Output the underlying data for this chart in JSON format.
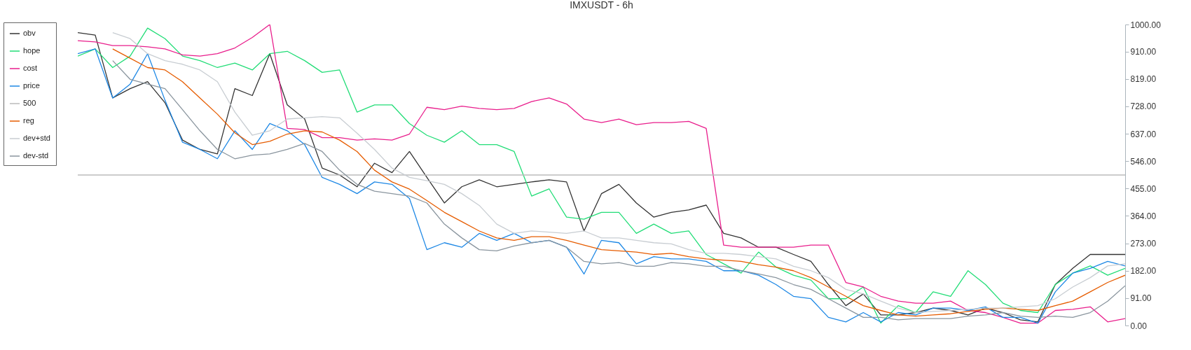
{
  "chart_data": {
    "type": "line",
    "title": "IMXUSDT - 6h",
    "categories": [
      null,
      null,
      null,
      null,
      null,
      null,
      null,
      null,
      null,
      null,
      null,
      null,
      null,
      null,
      null,
      null,
      null,
      null,
      null,
      null,
      null,
      null,
      null,
      null,
      null,
      null,
      null,
      null,
      null,
      null,
      null,
      null,
      null,
      null,
      null,
      null,
      null,
      null,
      null,
      null,
      null,
      null,
      null,
      null,
      null,
      null,
      null,
      null,
      null,
      null,
      null,
      null,
      null,
      null,
      null,
      null,
      null,
      null,
      null,
      null,
      null
    ],
    "series": [
      {
        "name": "obv",
        "color": "#333333",
        "values": [
          973,
          965,
          756,
          787,
          810,
          740,
          616,
          585,
          570,
          787,
          764,
          903,
          733,
          686,
          523,
          500,
          461,
          539,
          508,
          578,
          492,
          407,
          461,
          484,
          461,
          469,
          477,
          484,
          477,
          314,
          438,
          469,
          407,
          360,
          376,
          384,
          400,
          306,
          291,
          260,
          260,
          236,
          213,
          136,
          66,
          105,
          35,
          35,
          43,
          58,
          50,
          35,
          58,
          43,
          19,
          12,
          136,
          190,
          236,
          236,
          236
        ]
      },
      {
        "name": "hope",
        "color": "#22dd77",
        "values": [
          895,
          919,
          857,
          895,
          988,
          953,
          895,
          880,
          857,
          872,
          849,
          903,
          911,
          880,
          841,
          849,
          709,
          733,
          733,
          671,
          632,
          609,
          647,
          601,
          601,
          578,
          430,
          454,
          360,
          353,
          376,
          376,
          306,
          337,
          306,
          314,
          236,
          205,
          174,
          244,
          194,
          167,
          151,
          89,
          89,
          128,
          8,
          66,
          43,
          112,
          97,
          182,
          136,
          74,
          50,
          43,
          136,
          174,
          198,
          167,
          190
        ]
      },
      {
        "name": "cost",
        "color": "#e91e8c",
        "values": [
          946,
          942,
          930,
          930,
          926,
          919,
          899,
          895,
          903,
          922,
          957,
          1000,
          655,
          651,
          624,
          624,
          616,
          620,
          616,
          636,
          725,
          717,
          729,
          721,
          717,
          721,
          744,
          756,
          736,
          686,
          674,
          686,
          667,
          674,
          674,
          678,
          655,
          267,
          260,
          260,
          260,
          260,
          267,
          267,
          143,
          128,
          97,
          81,
          74,
          74,
          81,
          50,
          43,
          27,
          8,
          8,
          50,
          54,
          62,
          12,
          23
        ]
      },
      {
        "name": "price",
        "color": "#1e88e5",
        "values": [
          903,
          919,
          756,
          802,
          903,
          748,
          609,
          585,
          554,
          647,
          585,
          671,
          647,
          601,
          492,
          469,
          438,
          477,
          469,
          422,
          252,
          275,
          260,
          306,
          283,
          306,
          275,
          283,
          260,
          171,
          283,
          275,
          205,
          229,
          221,
          221,
          213,
          182,
          182,
          167,
          136,
          97,
          89,
          27,
          12,
          43,
          12,
          43,
          35,
          58,
          58,
          50,
          62,
          27,
          27,
          8,
          112,
          174,
          190,
          213,
          198
        ]
      },
      {
        "name": "500",
        "color": "#bbbbbb",
        "values": [
          500,
          500,
          500,
          500,
          500,
          500,
          500,
          500,
          500,
          500,
          500,
          500,
          500,
          500,
          500,
          500,
          500,
          500,
          500,
          500,
          500,
          500,
          500,
          500,
          500,
          500,
          500,
          500,
          500,
          500,
          500,
          500,
          500,
          500,
          500,
          500,
          500,
          500,
          500,
          500,
          500,
          500,
          500,
          500,
          500,
          500,
          500,
          500,
          500,
          500,
          500,
          500,
          500,
          500,
          500,
          500,
          500,
          500,
          500,
          500,
          500
        ]
      },
      {
        "name": "reg",
        "color": "#e65c00",
        "values": [
          null,
          null,
          919,
          888,
          857,
          849,
          810,
          756,
          702,
          640,
          601,
          612,
          636,
          647,
          643,
          616,
          578,
          516,
          477,
          453,
          415,
          376,
          345,
          314,
          291,
          283,
          295,
          295,
          283,
          267,
          252,
          248,
          244,
          236,
          240,
          229,
          221,
          217,
          213,
          202,
          194,
          182,
          159,
          128,
          97,
          66,
          50,
          35,
          31,
          35,
          39,
          47,
          54,
          58,
          54,
          50,
          66,
          81,
          112,
          143,
          167
        ]
      },
      {
        "name": "dev+std",
        "color": "#c8cdd2",
        "values": [
          null,
          null,
          973,
          953,
          903,
          880,
          868,
          849,
          810,
          709,
          632,
          647,
          686,
          690,
          694,
          690,
          639,
          585,
          523,
          492,
          481,
          469,
          438,
          399,
          337,
          306,
          314,
          310,
          306,
          314,
          291,
          291,
          283,
          275,
          271,
          252,
          240,
          240,
          236,
          229,
          221,
          197,
          182,
          159,
          120,
          105,
          81,
          58,
          43,
          47,
          50,
          54,
          58,
          58,
          62,
          66,
          89,
          128,
          159,
          198,
          205
        ]
      },
      {
        "name": "dev-std",
        "color": "#8a959e",
        "values": [
          null,
          null,
          880,
          818,
          802,
          787,
          717,
          647,
          585,
          554,
          566,
          570,
          585,
          605,
          578,
          516,
          469,
          446,
          438,
          430,
          407,
          337,
          291,
          252,
          248,
          264,
          275,
          283,
          260,
          213,
          205,
          209,
          197,
          197,
          209,
          205,
          197,
          197,
          182,
          171,
          159,
          136,
          120,
          89,
          58,
          27,
          27,
          19,
          23,
          23,
          23,
          31,
          35,
          43,
          31,
          27,
          31,
          27,
          43,
          81,
          132
        ]
      }
    ],
    "ylim": [
      0,
      1000
    ],
    "yticks": [
      {
        "value": 0,
        "label": "0.00"
      },
      {
        "value": 91,
        "label": "91.00"
      },
      {
        "value": 182,
        "label": "182.00"
      },
      {
        "value": 273,
        "label": "273.00"
      },
      {
        "value": 364,
        "label": "364.00"
      },
      {
        "value": 455,
        "label": "455.00"
      },
      {
        "value": 546,
        "label": "546.00"
      },
      {
        "value": 637,
        "label": "637.00"
      },
      {
        "value": 728,
        "label": "728.00"
      },
      {
        "value": 819,
        "label": "819.00"
      },
      {
        "value": 910,
        "label": "910.00"
      },
      {
        "value": 1000,
        "label": "1000.00"
      }
    ],
    "tick_labels": "y",
    "grid": false,
    "legend": "top left"
  }
}
